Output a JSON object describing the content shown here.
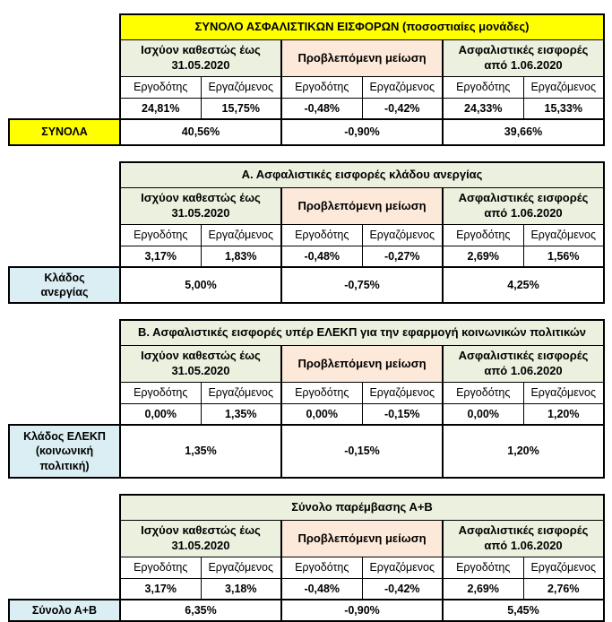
{
  "colors": {
    "title_yellow": "#FFFF00",
    "header_green": "#EBF1DE",
    "header_peach": "#FDE9D9",
    "label_blue": "#DAEEF3",
    "border": "#000000",
    "text": "#000000"
  },
  "shared": {
    "group_headers": [
      "Ισχύον καθεστώς έως 31.05.2020",
      "Προβλεπόμενη μείωση",
      "Ασφαλιστικές εισφορές από 1.06.2020"
    ],
    "sub_headers": [
      "Εργοδότης",
      "Εργαζόμενος"
    ]
  },
  "tables": [
    {
      "title": "ΣΥΝΟΛΟ ΑΣΦΑΛΙΣΤΙΚΩΝ ΕΙΣΦΟΡΩΝ (ποσοστιαίες μονάδες)",
      "values": [
        "24,81%",
        "15,75%",
        "-0,48%",
        "-0,42%",
        "24,33%",
        "15,33%"
      ],
      "row_label": "ΣΥΝΟΛΑ",
      "totals": [
        "40,56%",
        "-0,90%",
        "39,66%"
      ]
    },
    {
      "title": "Α. Ασφαλιστικές εισφορές κλάδου ανεργίας",
      "values": [
        "3,17%",
        "1,83%",
        "-0,48%",
        "-0,27%",
        "2,69%",
        "1,56%"
      ],
      "row_label": "Κλάδος\nανεργίας",
      "totals": [
        "5,00%",
        "-0,75%",
        "4,25%"
      ]
    },
    {
      "title": "Β. Ασφαλιστικές εισφορές υπέρ ΕΛΕΚΠ για την εφαρμογή κοινωνικών πολιτικών",
      "values": [
        "0,00%",
        "1,35%",
        "0,00%",
        "-0,15%",
        "0,00%",
        "1,20%"
      ],
      "row_label": "Κλάδος ΕΛΕΚΠ\n(κοινωνική\nπολιτική)",
      "totals": [
        "1,35%",
        "-0,15%",
        "1,20%"
      ]
    },
    {
      "title": "Σύνολο παρέμβασης Α+Β",
      "values": [
        "3,17%",
        "3,18%",
        "-0,48%",
        "-0,42%",
        "2,69%",
        "2,76%"
      ],
      "row_label": "Σύνολο Α+Β",
      "totals": [
        "6,35%",
        "-0,90%",
        "5,45%"
      ]
    }
  ]
}
